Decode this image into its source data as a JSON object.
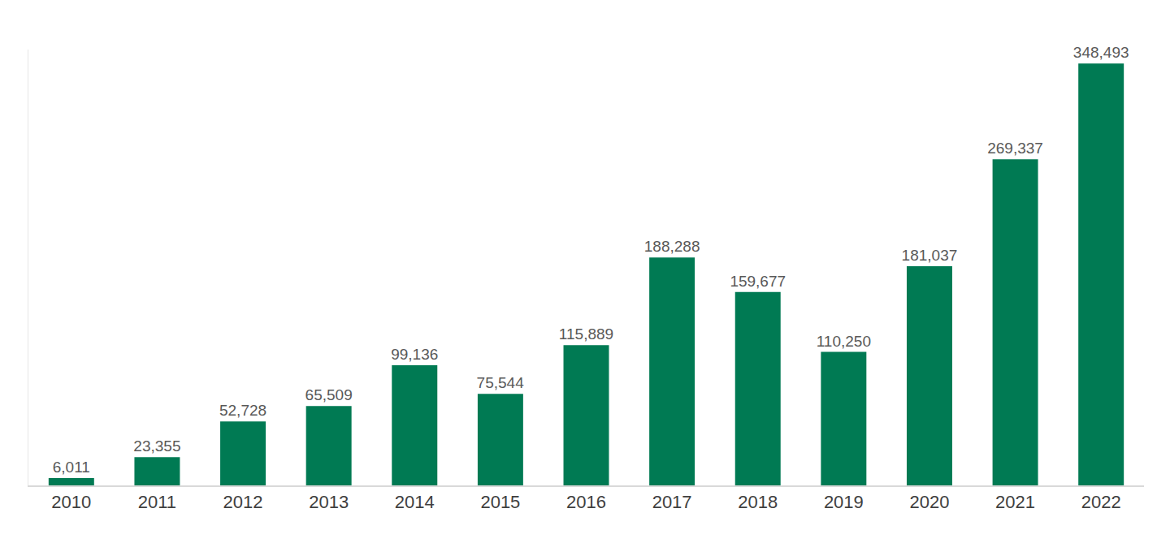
{
  "chart_data": {
    "type": "bar",
    "categories": [
      "2010",
      "2011",
      "2012",
      "2013",
      "2014",
      "2015",
      "2016",
      "2017",
      "2018",
      "2019",
      "2020",
      "2021",
      "2022"
    ],
    "values": [
      6011,
      23355,
      52728,
      65509,
      99136,
      75544,
      115889,
      188288,
      159677,
      110250,
      181037,
      269337,
      348493
    ],
    "value_labels": [
      "6,011",
      "23,355",
      "52,728",
      "65,509",
      "99,136",
      "75,544",
      "115,889",
      "188,288",
      "159,677",
      "110,250",
      "181,037",
      "269,337",
      "348,493"
    ],
    "color": "#007a53",
    "ylim": [
      0,
      360000
    ],
    "grid": false,
    "data_labels": true,
    "tick_labels": "x"
  }
}
